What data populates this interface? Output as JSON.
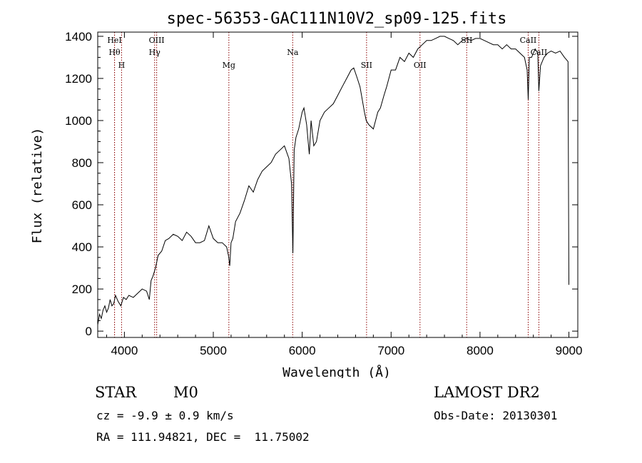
{
  "chart_data": {
    "type": "line",
    "title": "spec-56353-GAC111N10V2_sp09-125.fits",
    "xlabel": "Wavelength (Å)",
    "ylabel": "Flux (relative)",
    "xlim": [
      3700,
      9100
    ],
    "ylim": [
      -30,
      1420
    ],
    "xticks": [
      4000,
      5000,
      6000,
      7000,
      8000,
      9000
    ],
    "yticks": [
      0,
      200,
      400,
      600,
      800,
      1000,
      1200,
      1400
    ],
    "grid": false,
    "line_color": "#000000",
    "marker_color": "#8b0000",
    "series": [
      {
        "x": [
          3700,
          3720,
          3740,
          3760,
          3780,
          3800,
          3820,
          3840,
          3860,
          3880,
          3900,
          3930,
          3960,
          3990,
          4020,
          4050,
          4100,
          4150,
          4200,
          4250,
          4280,
          4300,
          4320,
          4350,
          4380,
          4420,
          4460,
          4500,
          4550,
          4600,
          4650,
          4700,
          4750,
          4800,
          4850,
          4900,
          4950,
          5000,
          5050,
          5100,
          5150,
          5170,
          5185,
          5200,
          5220,
          5250,
          5300,
          5350,
          5400,
          5450,
          5500,
          5550,
          5600,
          5650,
          5700,
          5750,
          5800,
          5850,
          5880,
          5895,
          5910,
          5930,
          5960,
          6000,
          6020,
          6050,
          6080,
          6100,
          6130,
          6160,
          6200,
          6250,
          6300,
          6350,
          6400,
          6450,
          6500,
          6550,
          6580,
          6620,
          6650,
          6700,
          6720,
          6750,
          6800,
          6850,
          6880,
          6920,
          6950,
          7000,
          7050,
          7100,
          7150,
          7200,
          7250,
          7300,
          7350,
          7400,
          7450,
          7500,
          7550,
          7600,
          7650,
          7700,
          7750,
          7800,
          7850,
          7900,
          7950,
          8000,
          8050,
          8100,
          8150,
          8200,
          8250,
          8300,
          8350,
          8400,
          8450,
          8500,
          8530,
          8542,
          8555,
          8580,
          8620,
          8650,
          8662,
          8680,
          8720,
          8760,
          8800,
          8850,
          8900,
          8950,
          8990,
          9000
        ],
        "y": [
          30,
          80,
          60,
          100,
          120,
          90,
          110,
          150,
          120,
          130,
          170,
          140,
          120,
          160,
          150,
          170,
          160,
          180,
          200,
          190,
          150,
          240,
          260,
          300,
          360,
          380,
          430,
          440,
          460,
          450,
          430,
          470,
          450,
          420,
          420,
          430,
          500,
          440,
          420,
          420,
          400,
          360,
          310,
          420,
          440,
          520,
          560,
          620,
          690,
          660,
          720,
          760,
          780,
          800,
          840,
          860,
          880,
          820,
          700,
          370,
          860,
          920,
          960,
          1040,
          1060,
          980,
          840,
          1000,
          880,
          900,
          1000,
          1040,
          1060,
          1080,
          1120,
          1160,
          1200,
          1240,
          1250,
          1200,
          1160,
          1040,
          1000,
          980,
          960,
          1040,
          1060,
          1120,
          1160,
          1240,
          1240,
          1300,
          1280,
          1320,
          1300,
          1340,
          1360,
          1380,
          1380,
          1390,
          1400,
          1400,
          1390,
          1380,
          1360,
          1380,
          1390,
          1380,
          1390,
          1390,
          1380,
          1370,
          1360,
          1360,
          1340,
          1360,
          1340,
          1340,
          1320,
          1300,
          1240,
          1100,
          1300,
          1300,
          1340,
          1320,
          1140,
          1260,
          1300,
          1320,
          1330,
          1320,
          1330,
          1300,
          1280,
          220
        ]
      }
    ],
    "lines": [
      {
        "label": "HeI",
        "x": 3889,
        "row": 0
      },
      {
        "label": "Hθ",
        "x": 3889,
        "row": 1
      },
      {
        "label": "H",
        "x": 3968,
        "row": 2
      },
      {
        "label": "OIII",
        "x": 4363,
        "row": 0
      },
      {
        "label": "Hγ",
        "x": 4340,
        "row": 1
      },
      {
        "label": "Mg",
        "x": 5175,
        "row": 2
      },
      {
        "label": "Na",
        "x": 5893,
        "row": 1
      },
      {
        "label": "SII",
        "x": 6724,
        "row": 2
      },
      {
        "label": "OII",
        "x": 7325,
        "row": 2
      },
      {
        "label": "SII",
        "x": 7850,
        "row": 0
      },
      {
        "label": "CaII",
        "x": 8542,
        "row": 0
      },
      {
        "label": "CaII",
        "x": 8662,
        "row": 1
      }
    ]
  },
  "info": {
    "obj_class": "STAR",
    "subclass": "M0",
    "survey": "LAMOST DR2",
    "cz": "cz = -9.9 ± 0.9 km/s",
    "obs_date": "Obs-Date: 20130301",
    "coords": "RA = 111.94821, DEC =  11.75002"
  }
}
